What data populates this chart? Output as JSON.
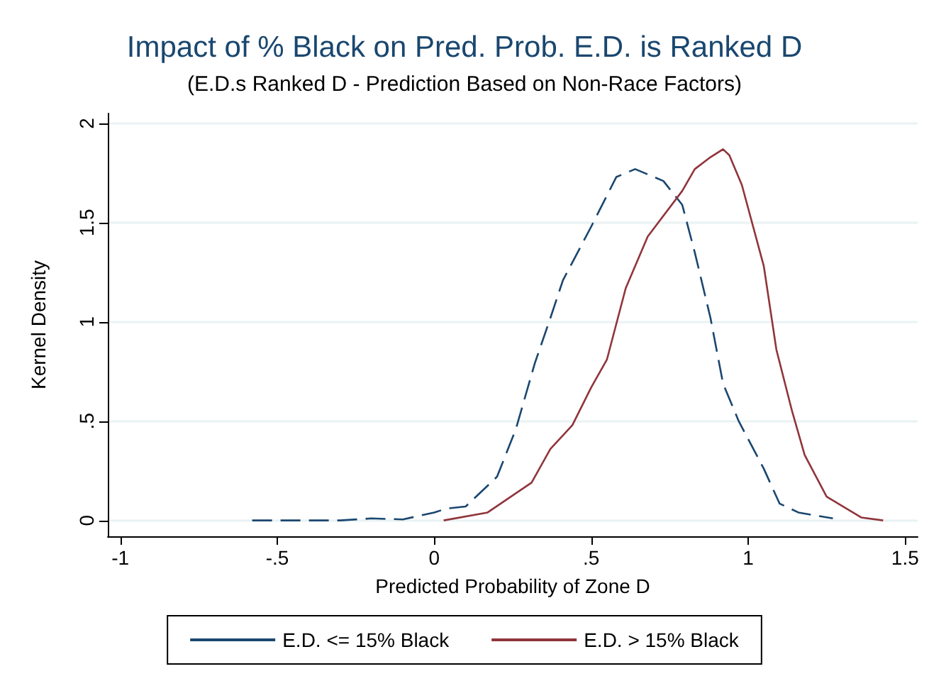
{
  "chart_data": {
    "type": "line",
    "title": "Impact of % Black on Pred. Prob. E.D. is Ranked D",
    "subtitle": "(E.D.s Ranked D - Prediction Based on Non-Race Factors)",
    "xlabel": "Predicted Probability of Zone D",
    "ylabel": "Kernel Density",
    "xlim": [
      -1.04,
      1.54
    ],
    "xticks": [
      -1,
      {
        "value": -0.5,
        "label": "-.5"
      },
      0,
      {
        "value": 0.5,
        "label": ".5"
      },
      1,
      1.5
    ],
    "ylim": [
      -0.08,
      2.05
    ],
    "yticks": [
      0,
      {
        "value": 0.5,
        "label": ".5"
      },
      1,
      1.5,
      2
    ],
    "grid": "y",
    "legend": "bottom",
    "marker": "none",
    "series": [
      {
        "name": "E.D. <= 15% Black",
        "color": "#1a476f",
        "line_style": "dashed",
        "x": [
          -0.58,
          -0.4,
          -0.3,
          -0.2,
          -0.1,
          0,
          0.04,
          0.1,
          0.2,
          0.26,
          0.32,
          0.37,
          0.41,
          0.5,
          0.58,
          0.64,
          0.73,
          0.79,
          0.83,
          0.88,
          0.92,
          0.97,
          1.05,
          1.1,
          1.16,
          1.27
        ],
        "values": [
          0,
          0,
          0,
          0.01,
          0.005,
          0.04,
          0.06,
          0.07,
          0.22,
          0.46,
          0.79,
          1.02,
          1.21,
          1.48,
          1.73,
          1.77,
          1.71,
          1.59,
          1.35,
          1.02,
          0.69,
          0.5,
          0.26,
          0.085,
          0.04,
          0.01
        ]
      },
      {
        "name": "E.D. > 15% Black",
        "color": "#90353b",
        "line_style": "solid",
        "x": [
          0.03,
          0.17,
          0.31,
          0.37,
          0.44,
          0.5,
          0.55,
          0.61,
          0.68,
          0.79,
          0.83,
          0.88,
          0.92,
          0.94,
          0.98,
          1.05,
          1.09,
          1.14,
          1.18,
          1.25,
          1.36,
          1.43
        ],
        "values": [
          0,
          0.04,
          0.19,
          0.36,
          0.48,
          0.67,
          0.81,
          1.17,
          1.43,
          1.66,
          1.77,
          1.83,
          1.87,
          1.84,
          1.69,
          1.28,
          0.86,
          0.55,
          0.33,
          0.12,
          0.015,
          0
        ]
      }
    ]
  }
}
